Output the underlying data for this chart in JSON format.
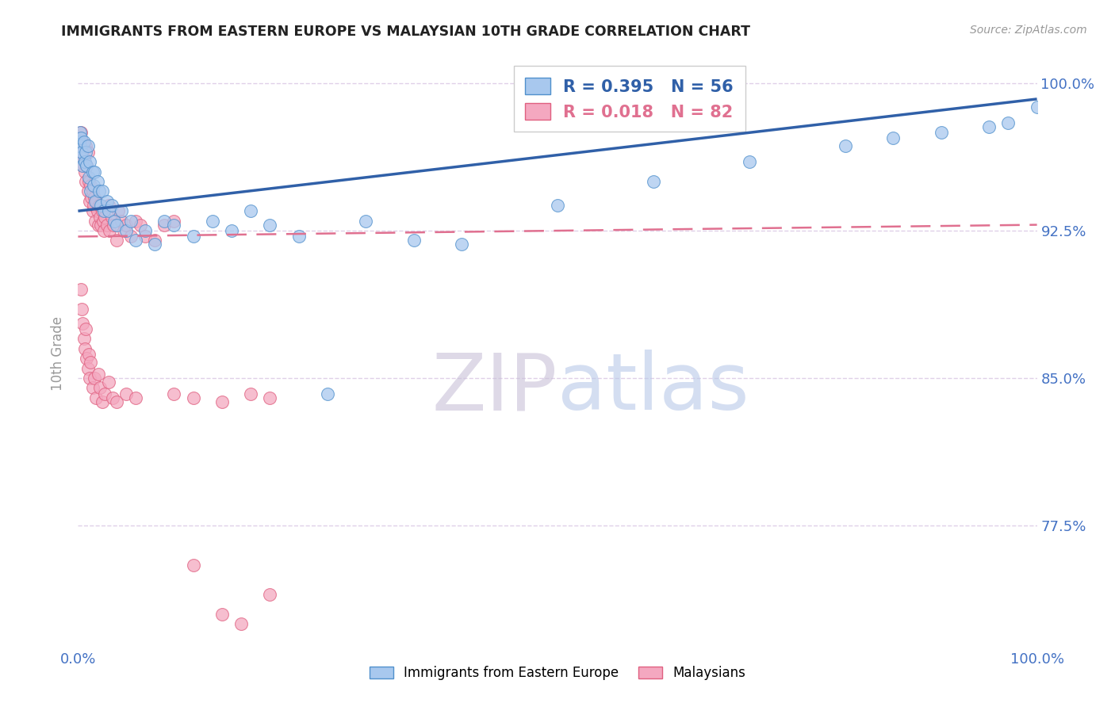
{
  "title": "IMMIGRANTS FROM EASTERN EUROPE VS MALAYSIAN 10TH GRADE CORRELATION CHART",
  "source_text": "Source: ZipAtlas.com",
  "ylabel": "10th Grade",
  "xlim": [
    0.0,
    1.0
  ],
  "ylim": [
    0.715,
    1.01
  ],
  "yticks": [
    0.775,
    0.85,
    0.925,
    1.0
  ],
  "ytick_labels": [
    "77.5%",
    "85.0%",
    "92.5%",
    "100.0%"
  ],
  "xticks": [
    0.0,
    1.0
  ],
  "xtick_labels": [
    "0.0%",
    "100.0%"
  ],
  "blue_label": "Immigrants from Eastern Europe",
  "pink_label": "Malaysians",
  "blue_R": 0.395,
  "blue_N": 56,
  "pink_R": 0.018,
  "pink_N": 82,
  "blue_color": "#A8C8EE",
  "pink_color": "#F4A8C0",
  "blue_edge_color": "#5090CC",
  "pink_edge_color": "#E06080",
  "blue_line_color": "#3060A8",
  "pink_line_color": "#E07090",
  "grid_color": "#E0D0E8",
  "background_color": "#FFFFFF",
  "blue_line_x0": 0.0,
  "blue_line_y0": 0.935,
  "blue_line_x1": 1.0,
  "blue_line_y1": 0.992,
  "pink_line_x0": 0.0,
  "pink_line_y0": 0.922,
  "pink_line_x1": 1.0,
  "pink_line_y1": 0.928,
  "blue_scatter_x": [
    0.001,
    0.002,
    0.002,
    0.003,
    0.003,
    0.004,
    0.005,
    0.006,
    0.007,
    0.008,
    0.009,
    0.01,
    0.011,
    0.012,
    0.013,
    0.015,
    0.016,
    0.017,
    0.018,
    0.02,
    0.022,
    0.024,
    0.025,
    0.027,
    0.03,
    0.032,
    0.035,
    0.038,
    0.04,
    0.045,
    0.05,
    0.055,
    0.06,
    0.07,
    0.08,
    0.09,
    0.1,
    0.12,
    0.14,
    0.16,
    0.18,
    0.2,
    0.23,
    0.26,
    0.3,
    0.35,
    0.4,
    0.5,
    0.6,
    0.7,
    0.8,
    0.85,
    0.9,
    0.95,
    0.97,
    1.0
  ],
  "blue_scatter_y": [
    0.97,
    0.968,
    0.975,
    0.962,
    0.972,
    0.965,
    0.958,
    0.97,
    0.96,
    0.965,
    0.958,
    0.968,
    0.952,
    0.96,
    0.945,
    0.955,
    0.948,
    0.955,
    0.94,
    0.95,
    0.945,
    0.938,
    0.945,
    0.935,
    0.94,
    0.935,
    0.938,
    0.93,
    0.928,
    0.935,
    0.925,
    0.93,
    0.92,
    0.925,
    0.918,
    0.93,
    0.928,
    0.922,
    0.93,
    0.925,
    0.935,
    0.928,
    0.922,
    0.842,
    0.93,
    0.92,
    0.918,
    0.938,
    0.95,
    0.96,
    0.968,
    0.972,
    0.975,
    0.978,
    0.98,
    0.988
  ],
  "pink_scatter_x": [
    0.001,
    0.002,
    0.003,
    0.003,
    0.004,
    0.005,
    0.005,
    0.006,
    0.007,
    0.008,
    0.008,
    0.009,
    0.01,
    0.01,
    0.011,
    0.012,
    0.013,
    0.014,
    0.015,
    0.015,
    0.016,
    0.017,
    0.018,
    0.019,
    0.02,
    0.021,
    0.022,
    0.023,
    0.024,
    0.025,
    0.026,
    0.027,
    0.028,
    0.03,
    0.032,
    0.033,
    0.035,
    0.037,
    0.04,
    0.042,
    0.045,
    0.048,
    0.05,
    0.055,
    0.06,
    0.065,
    0.07,
    0.08,
    0.09,
    0.1,
    0.003,
    0.004,
    0.005,
    0.006,
    0.007,
    0.008,
    0.009,
    0.01,
    0.011,
    0.012,
    0.013,
    0.015,
    0.017,
    0.019,
    0.021,
    0.023,
    0.025,
    0.028,
    0.032,
    0.036,
    0.04,
    0.05,
    0.06,
    0.1,
    0.12,
    0.15,
    0.18,
    0.2,
    0.12,
    0.2,
    0.15,
    0.17
  ],
  "pink_scatter_y": [
    0.972,
    0.968,
    0.975,
    0.96,
    0.965,
    0.97,
    0.958,
    0.962,
    0.955,
    0.968,
    0.95,
    0.958,
    0.965,
    0.945,
    0.95,
    0.94,
    0.948,
    0.942,
    0.945,
    0.935,
    0.938,
    0.942,
    0.93,
    0.94,
    0.935,
    0.928,
    0.938,
    0.932,
    0.928,
    0.935,
    0.93,
    0.925,
    0.932,
    0.928,
    0.938,
    0.925,
    0.932,
    0.928,
    0.92,
    0.935,
    0.93,
    0.925,
    0.928,
    0.922,
    0.93,
    0.928,
    0.922,
    0.92,
    0.928,
    0.93,
    0.895,
    0.885,
    0.878,
    0.87,
    0.865,
    0.875,
    0.86,
    0.855,
    0.862,
    0.85,
    0.858,
    0.845,
    0.85,
    0.84,
    0.852,
    0.845,
    0.838,
    0.842,
    0.848,
    0.84,
    0.838,
    0.842,
    0.84,
    0.842,
    0.84,
    0.838,
    0.842,
    0.84,
    0.755,
    0.74,
    0.73,
    0.725
  ]
}
